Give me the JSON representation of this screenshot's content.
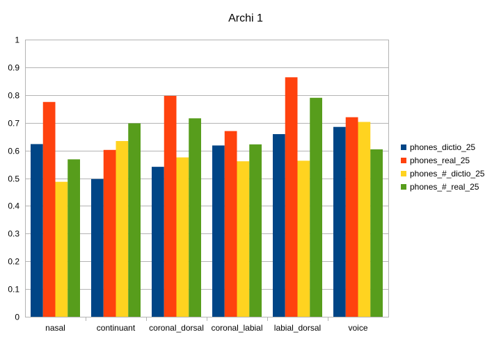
{
  "chart_data": {
    "type": "bar",
    "title": "Archi 1",
    "xlabel": "",
    "ylabel": "",
    "ylim": [
      0,
      1
    ],
    "yticks": [
      "0",
      "0.1",
      "0.2",
      "0.3",
      "0.4",
      "0.5",
      "0.6",
      "0.7",
      "0.8",
      "0.9",
      "1"
    ],
    "grid": true,
    "legend_position": "right",
    "categories": [
      "nasal",
      "continuant",
      "coronal_dorsal",
      "coronal_labial",
      "labial_dorsal",
      "voice"
    ],
    "series": [
      {
        "name": "phones_dictio_25",
        "color": "#004586",
        "values": [
          0.623,
          0.497,
          0.541,
          0.618,
          0.659,
          0.685
        ]
      },
      {
        "name": "phones_real_25",
        "color": "#ff420e",
        "values": [
          0.775,
          0.602,
          0.797,
          0.67,
          0.864,
          0.72
        ]
      },
      {
        "name": "phones_#_dictio_25",
        "color": "#ffd320",
        "values": [
          0.487,
          0.634,
          0.575,
          0.561,
          0.563,
          0.703
        ]
      },
      {
        "name": "phones_#_real_25",
        "color": "#579d1c",
        "values": [
          0.568,
          0.698,
          0.716,
          0.622,
          0.79,
          0.604
        ]
      }
    ]
  }
}
